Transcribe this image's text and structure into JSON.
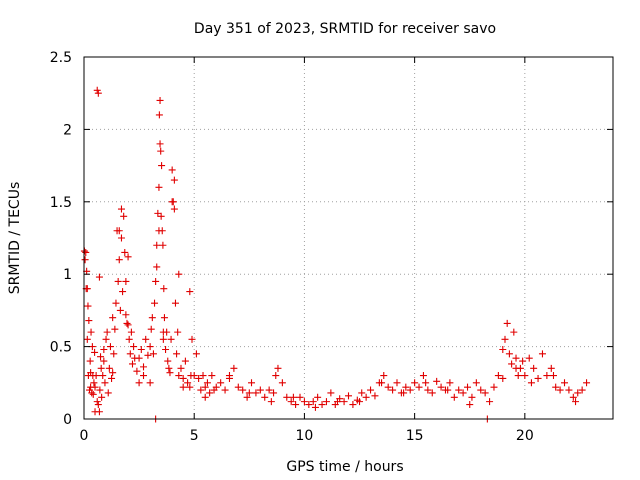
{
  "chart_data": {
    "type": "scatter",
    "title": "Day 351 of 2023, SRMTID for receiver savo",
    "xlabel": "GPS time / hours",
    "ylabel": "SRMTID / TECUs",
    "xlim": [
      0,
      24
    ],
    "ylim": [
      0,
      2.5
    ],
    "x_ticks": [
      0,
      5,
      10,
      15,
      20
    ],
    "x_tick_labels": [
      "0",
      "5",
      "10",
      "15",
      "20"
    ],
    "y_ticks": [
      0,
      0.5,
      1,
      1.5,
      2,
      2.5
    ],
    "y_tick_labels": [
      "0",
      "0.5",
      "1",
      "1.5",
      "2",
      "2.5"
    ],
    "grid": true,
    "marker": "+",
    "color": "#e00000",
    "series": [
      {
        "name": "SRMTID",
        "x": [
          0.02,
          0.05,
          0.08,
          0.1,
          0.12,
          0.15,
          0.18,
          0.2,
          0.22,
          0.25,
          0.28,
          0.3,
          0.32,
          0.35,
          0.38,
          0.4,
          0.42,
          0.45,
          0.48,
          0.5,
          0.55,
          0.6,
          0.65,
          0.7,
          0.72,
          0.75,
          0.78,
          0.8,
          0.85,
          0.9,
          0.95,
          1.0,
          1.05,
          1.1,
          1.15,
          1.2,
          1.25,
          1.3,
          1.35,
          1.4,
          1.45,
          1.5,
          1.55,
          1.6,
          1.65,
          1.7,
          1.75,
          1.8,
          1.85,
          1.9,
          1.95,
          2.0,
          2.05,
          2.1,
          2.15,
          2.2,
          2.25,
          2.3,
          2.4,
          2.5,
          2.6,
          2.7,
          2.8,
          2.9,
          3.0,
          3.05,
          3.1,
          3.15,
          3.2,
          3.25,
          3.3,
          3.35,
          3.4,
          3.42,
          3.45,
          3.48,
          3.5,
          3.52,
          3.55,
          3.58,
          3.6,
          3.62,
          3.65,
          3.7,
          3.75,
          3.8,
          3.85,
          3.9,
          3.95,
          4.0,
          4.05,
          4.1,
          4.15,
          4.2,
          4.25,
          4.3,
          4.4,
          4.5,
          4.6,
          4.7,
          4.8,
          4.85,
          4.9,
          5.0,
          5.1,
          5.2,
          5.3,
          5.4,
          5.5,
          5.6,
          5.7,
          5.8,
          5.9,
          6.0,
          6.2,
          6.4,
          6.6,
          6.8,
          7.0,
          7.2,
          7.4,
          7.6,
          7.8,
          8.0,
          8.2,
          8.4,
          8.6,
          8.7,
          8.8,
          9.0,
          9.2,
          9.4,
          9.6,
          9.8,
          10.0,
          10.2,
          10.4,
          10.6,
          10.8,
          11.0,
          11.2,
          11.4,
          11.6,
          11.8,
          12.0,
          12.2,
          12.4,
          12.6,
          12.8,
          13.0,
          13.2,
          13.4,
          13.6,
          13.8,
          14.0,
          14.2,
          14.4,
          14.6,
          14.8,
          15.0,
          15.2,
          15.4,
          15.6,
          15.8,
          16.0,
          16.2,
          16.4,
          16.6,
          16.8,
          17.0,
          17.2,
          17.4,
          17.6,
          17.8,
          18.0,
          18.2,
          18.4,
          18.6,
          18.8,
          19.0,
          19.1,
          19.2,
          19.3,
          19.4,
          19.5,
          19.6,
          19.7,
          19.8,
          19.9,
          20.0,
          20.2,
          20.4,
          20.6,
          20.8,
          21.0,
          21.2,
          21.4,
          21.6,
          21.8,
          22.0,
          22.2,
          22.4,
          22.6,
          22.8,
          0.6,
          0.65,
          0.7,
          1.6,
          1.7,
          3.3,
          3.4,
          3.45,
          4.0,
          4.1,
          4.3,
          4.8,
          3.6,
          1.9,
          2.0,
          0.15,
          0.3,
          0.5,
          0.9,
          1.3,
          2.5,
          2.7,
          3.0,
          4.5,
          5.5,
          6.6,
          7.5,
          8.5,
          9.5,
          10.5,
          11.5,
          12.5,
          13.5,
          14.5,
          15.5,
          16.5,
          17.5,
          19.0,
          19.6,
          20.3,
          21.3,
          22.3,
          18.3,
          3.25
        ],
        "y": [
          1.16,
          1.1,
          1.15,
          0.9,
          1.02,
          0.55,
          0.78,
          0.3,
          0.68,
          0.2,
          0.4,
          0.22,
          0.6,
          0.18,
          0.5,
          0.3,
          0.17,
          0.25,
          0.46,
          0.22,
          0.3,
          0.12,
          0.1,
          0.05,
          0.2,
          0.43,
          0.35,
          0.15,
          0.3,
          0.4,
          0.25,
          0.55,
          0.6,
          0.18,
          0.35,
          0.5,
          0.28,
          0.7,
          0.45,
          0.62,
          0.8,
          1.3,
          0.95,
          1.1,
          0.75,
          1.25,
          0.88,
          1.4,
          1.15,
          0.72,
          0.66,
          0.65,
          0.55,
          0.45,
          0.6,
          0.38,
          0.5,
          0.42,
          0.33,
          0.25,
          0.48,
          0.36,
          0.55,
          0.44,
          0.5,
          0.62,
          0.7,
          0.45,
          0.8,
          0.95,
          1.2,
          1.42,
          1.6,
          2.1,
          2.2,
          1.85,
          1.4,
          1.75,
          1.3,
          1.2,
          0.55,
          0.9,
          0.7,
          0.48,
          0.6,
          0.4,
          0.35,
          0.32,
          0.55,
          1.72,
          1.5,
          1.65,
          0.8,
          0.45,
          0.6,
          0.3,
          0.35,
          0.28,
          0.4,
          0.25,
          0.22,
          0.3,
          0.55,
          0.3,
          0.45,
          0.28,
          0.2,
          0.3,
          0.22,
          0.25,
          0.18,
          0.3,
          0.2,
          0.22,
          0.25,
          0.2,
          0.3,
          0.35,
          0.22,
          0.2,
          0.15,
          0.25,
          0.18,
          0.2,
          0.15,
          0.2,
          0.18,
          0.3,
          0.35,
          0.25,
          0.15,
          0.12,
          0.1,
          0.15,
          0.12,
          0.1,
          0.12,
          0.15,
          0.1,
          0.12,
          0.18,
          0.1,
          0.14,
          0.12,
          0.16,
          0.1,
          0.13,
          0.18,
          0.15,
          0.2,
          0.16,
          0.25,
          0.3,
          0.22,
          0.2,
          0.25,
          0.18,
          0.22,
          0.2,
          0.25,
          0.22,
          0.3,
          0.2,
          0.18,
          0.26,
          0.22,
          0.2,
          0.25,
          0.15,
          0.2,
          0.18,
          0.22,
          0.15,
          0.25,
          0.2,
          0.18,
          0.12,
          0.22,
          0.3,
          0.48,
          0.55,
          0.66,
          0.45,
          0.38,
          0.6,
          0.42,
          0.3,
          0.35,
          0.4,
          0.3,
          0.42,
          0.35,
          0.28,
          0.45,
          0.3,
          0.35,
          0.22,
          0.2,
          0.25,
          0.2,
          0.15,
          0.18,
          0.2,
          0.25,
          2.27,
          2.25,
          0.98,
          1.3,
          1.45,
          1.05,
          1.3,
          1.9,
          1.5,
          1.45,
          1.0,
          0.88,
          0.6,
          0.95,
          1.12,
          0.9,
          0.32,
          0.05,
          0.48,
          0.32,
          0.42,
          0.3,
          0.25,
          0.22,
          0.15,
          0.28,
          0.18,
          0.12,
          0.15,
          0.08,
          0.12,
          0.12,
          0.25,
          0.18,
          0.25,
          0.2,
          0.1,
          0.28,
          0.35,
          0.25,
          0.3,
          0.12,
          0.0,
          0.0
        ]
      }
    ]
  }
}
